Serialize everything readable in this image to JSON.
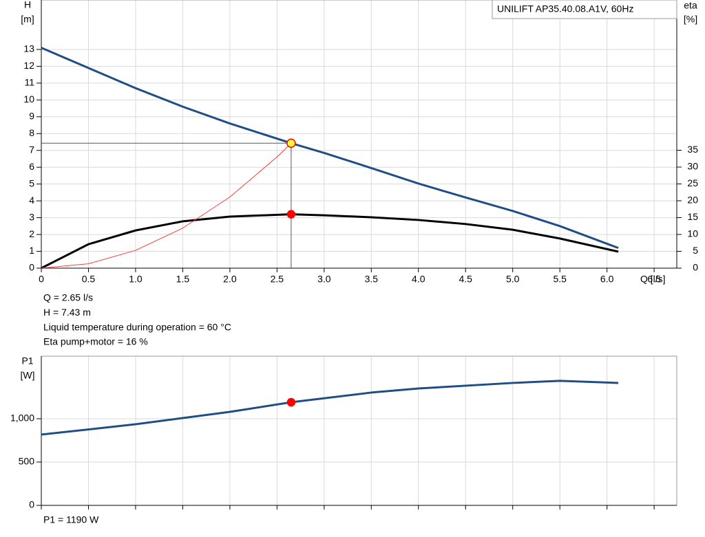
{
  "chart_data": [
    {
      "type": "line",
      "title": "UNILIFT AP35.40.08.A1V, 60Hz",
      "ylabel": [
        "H",
        "[m]"
      ],
      "y2label": [
        "eta",
        "[%]"
      ],
      "xlabel": "Q [l/s]",
      "xlim": [
        0,
        6.74
      ],
      "xticks": [
        0,
        0.5,
        {
          "value": 1,
          "label": "1.0"
        },
        1.5,
        {
          "value": 2,
          "label": "2.0"
        },
        2.5,
        {
          "value": 3,
          "label": "3.0"
        },
        3.5,
        {
          "value": 4,
          "label": "4.0"
        },
        4.5,
        {
          "value": 5,
          "label": "5.0"
        },
        5.5,
        {
          "value": 6,
          "label": "6.0"
        },
        6.5
      ],
      "ylim": [
        0,
        15.94
      ],
      "yticks": [
        0,
        1,
        2,
        3,
        4,
        5,
        6,
        7,
        8,
        9,
        10,
        11,
        12,
        13
      ],
      "y2lim": [
        0,
        79.6
      ],
      "y2ticks": [
        0,
        5,
        10,
        15,
        20,
        25,
        30,
        35
      ],
      "grid": true,
      "series": [
        {
          "color": "#1f4e85",
          "width": 3,
          "x": [
            0,
            0.5,
            1,
            1.5,
            2,
            2.65,
            3,
            3.5,
            4,
            4.5,
            5,
            5.5,
            6.12
          ],
          "values": [
            13.1,
            11.9,
            10.7,
            9.6,
            8.6,
            7.43,
            6.85,
            5.95,
            5.03,
            4.2,
            3.4,
            2.5,
            1.2
          ]
        },
        {
          "color": "#000000",
          "width": 3,
          "axis": "y2",
          "x": [
            0,
            0.5,
            1,
            1.5,
            2,
            2.65,
            3,
            3.5,
            4,
            4.5,
            5,
            5.5,
            6.12
          ],
          "values": [
            0,
            7.1,
            11.2,
            13.9,
            15.3,
            16,
            15.7,
            15.1,
            14.3,
            13.1,
            11.4,
            8.8,
            4.9
          ]
        },
        {
          "color": "#ff3b3b",
          "width": 1,
          "x": [
            0,
            0.5,
            1,
            1.5,
            2,
            2.5,
            2.65
          ],
          "values": [
            0,
            0.26,
            1.06,
            2.38,
            4.23,
            6.61,
            7.43
          ]
        }
      ],
      "points": [
        {
          "x": 2.65,
          "y": 7.43,
          "color": "#ffff33",
          "stroke": "#ff0000",
          "crosshair": true
        },
        {
          "x": 2.65,
          "y": 16,
          "axis": "y2",
          "color": "#ff0000",
          "stroke": "#ff0000"
        }
      ],
      "annotations": [
        "Q = 2.65 l/s",
        "H = 7.43 m",
        "Liquid temperature during operation = 60 °C",
        "Eta pump+motor = 16 %"
      ]
    },
    {
      "type": "line",
      "ylabel": [
        "P1",
        "[W]"
      ],
      "ylim": [
        0,
        1722
      ],
      "yticks": [
        0,
        500,
        {
          "value": 1000,
          "label": "1,000"
        }
      ],
      "grid": true,
      "series": [
        {
          "color": "#1f4e85",
          "width": 3,
          "x": [
            0,
            1,
            2,
            2.65,
            3.5,
            4,
            5,
            5.5,
            6.12
          ],
          "values": [
            817,
            936,
            1079,
            1190,
            1302,
            1349,
            1413,
            1437,
            1413
          ]
        }
      ],
      "points": [
        {
          "x": 2.65,
          "y": 1190,
          "color": "#ff0000",
          "stroke": "#ff0000"
        }
      ],
      "annotations": [
        "P1 = 1190 W"
      ]
    }
  ]
}
